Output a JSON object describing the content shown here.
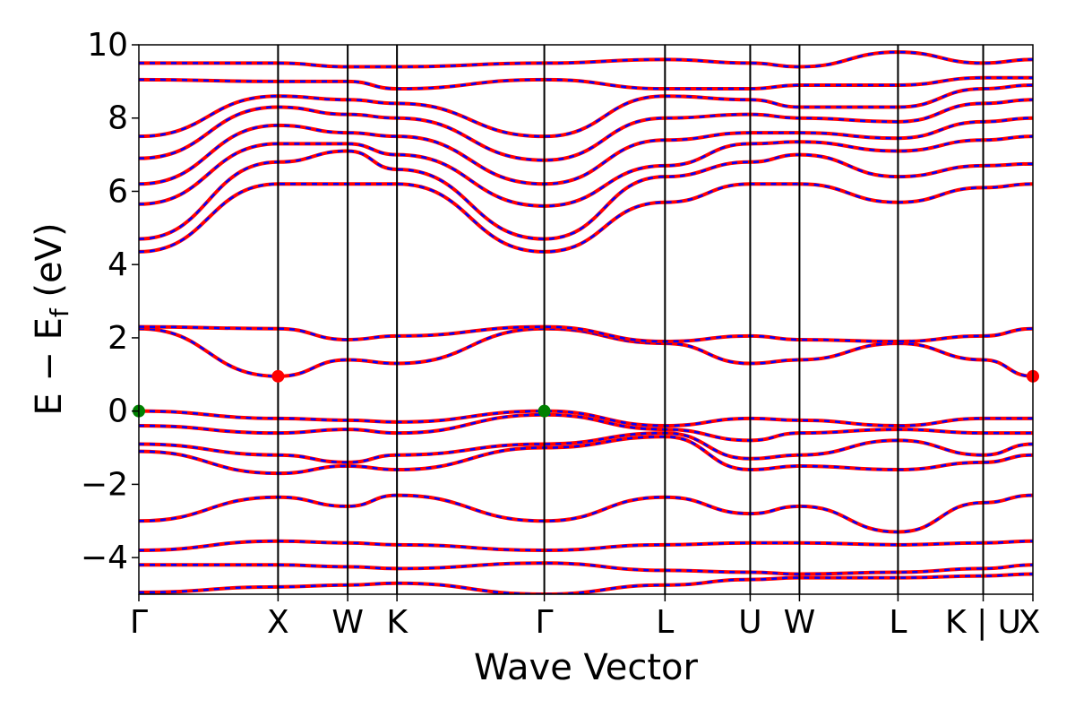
{
  "chart_data": {
    "type": "line",
    "xlabel": "Wave Vector",
    "ylabel_parts": [
      "E − E",
      "f",
      " (eV)"
    ],
    "ylim": [
      -5,
      10
    ],
    "xlim": [
      0,
      1
    ],
    "yticks": [
      -4,
      -2,
      0,
      2,
      4,
      6,
      8,
      10
    ],
    "ytick_labels": [
      "−4",
      "−2",
      "0",
      "2",
      "4",
      "6",
      "8",
      "10"
    ],
    "kpoints": [
      {
        "label": "Γ",
        "x": 0.0
      },
      {
        "label": "X",
        "x": 0.1557
      },
      {
        "label": "W",
        "x": 0.2336
      },
      {
        "label": "K",
        "x": 0.2887
      },
      {
        "label": "Γ",
        "x": 0.4535
      },
      {
        "label": "L",
        "x": 0.5885
      },
      {
        "label": "U",
        "x": 0.6838
      },
      {
        "label": "W",
        "x": 0.7389
      },
      {
        "label": "L",
        "x": 0.8491
      },
      {
        "label": "K | U",
        "x": 0.9444
      },
      {
        "label": "X",
        "x": 1.0
      }
    ],
    "series_colors": {
      "main": "#ff0000",
      "dashed": "#0000ff"
    },
    "bands": [
      [
        -4.95,
        -4.8,
        -4.75,
        -4.7,
        -5.0,
        -4.75,
        -4.6,
        -4.55,
        -4.55,
        -4.5,
        -4.45
      ],
      [
        -4.2,
        -4.2,
        -4.25,
        -4.3,
        -4.15,
        -4.35,
        -4.4,
        -4.45,
        -4.4,
        -4.3,
        -4.2
      ],
      [
        -3.8,
        -3.55,
        -3.6,
        -3.65,
        -3.8,
        -3.65,
        -3.6,
        -3.6,
        -3.65,
        -3.6,
        -3.55
      ],
      [
        -3.0,
        -2.35,
        -2.6,
        -2.3,
        -3.0,
        -2.35,
        -2.8,
        -2.6,
        -3.3,
        -2.5,
        -2.3
      ],
      [
        -1.1,
        -1.7,
        -1.5,
        -1.6,
        -1.0,
        -0.7,
        -1.6,
        -1.5,
        -1.6,
        -1.4,
        -1.2
      ],
      [
        -0.9,
        -1.2,
        -1.4,
        -1.2,
        -0.9,
        -0.6,
        -1.3,
        -1.2,
        -0.8,
        -1.2,
        -0.9
      ],
      [
        -0.4,
        -0.6,
        -0.5,
        -0.6,
        -0.1,
        -0.5,
        -0.8,
        -0.6,
        -0.5,
        -0.6,
        -0.6
      ],
      [
        0.0,
        -0.2,
        -0.25,
        -0.3,
        0.0,
        -0.4,
        -0.2,
        -0.25,
        -0.4,
        -0.2,
        -0.2
      ],
      [
        2.25,
        0.95,
        1.4,
        1.3,
        2.25,
        1.85,
        1.3,
        1.4,
        1.85,
        1.4,
        0.95
      ],
      [
        2.3,
        2.25,
        1.95,
        2.05,
        2.3,
        1.9,
        2.05,
        1.95,
        1.9,
        2.05,
        2.25
      ],
      [
        4.35,
        6.2,
        6.2,
        6.2,
        4.35,
        5.7,
        6.2,
        6.2,
        5.7,
        6.1,
        6.2
      ],
      [
        4.7,
        6.8,
        7.1,
        6.6,
        4.7,
        6.4,
        6.8,
        7.0,
        6.4,
        6.7,
        6.75
      ],
      [
        5.65,
        7.3,
        7.3,
        7.0,
        5.6,
        6.7,
        7.3,
        7.35,
        7.1,
        7.4,
        7.5
      ],
      [
        6.2,
        7.8,
        7.6,
        7.5,
        6.2,
        7.4,
        7.6,
        7.6,
        7.45,
        7.9,
        8.0
      ],
      [
        6.9,
        8.3,
        8.1,
        8.0,
        6.85,
        8.0,
        8.1,
        8.0,
        7.9,
        8.4,
        8.5
      ],
      [
        7.5,
        8.6,
        8.5,
        8.4,
        7.5,
        8.6,
        8.5,
        8.3,
        8.3,
        8.8,
        8.9
      ],
      [
        9.05,
        9.0,
        9.0,
        8.8,
        9.05,
        8.8,
        8.8,
        8.9,
        8.9,
        9.1,
        9.1
      ],
      [
        9.5,
        9.5,
        9.4,
        9.4,
        9.5,
        9.6,
        9.5,
        9.4,
        9.8,
        9.5,
        9.6
      ]
    ],
    "markers": [
      {
        "x": 0.0,
        "y": 0.0,
        "color": "#008000"
      },
      {
        "x": 0.4535,
        "y": 0.0,
        "color": "#008000"
      },
      {
        "x": 0.1557,
        "y": 0.95,
        "color": "#ff0000"
      },
      {
        "x": 1.0,
        "y": 0.95,
        "color": "#ff0000"
      }
    ]
  }
}
